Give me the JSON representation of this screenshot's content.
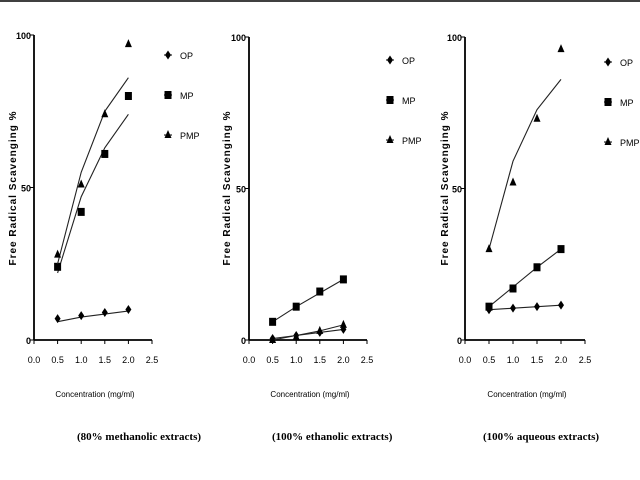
{
  "chart_data": [
    {
      "type": "scatter",
      "caption": "(80% methanolic extracts)",
      "xlabel": "Concentration (mg/ml)",
      "ylabel": "Free Radical Scavenging %",
      "xlim": [
        0.0,
        2.5
      ],
      "ylim": [
        0,
        100
      ],
      "xticks": [
        "0.0",
        "0.5",
        "1.0",
        "1.5",
        "2.0",
        "2.5"
      ],
      "yticks": [
        "0",
        "50",
        "100"
      ],
      "x": [
        0.5,
        1.0,
        1.5,
        2.0
      ],
      "legend_position": "top-right",
      "series": [
        {
          "name": "OP",
          "marker": "diamond",
          "values": [
            7,
            8,
            9,
            10
          ],
          "fit": [
            6,
            7.5,
            8.5,
            9.5
          ]
        },
        {
          "name": "MP",
          "marker": "square",
          "values": [
            24,
            42,
            61,
            80
          ],
          "fit": [
            22,
            47,
            63,
            74
          ]
        },
        {
          "name": "PMP",
          "marker": "triangle",
          "values": [
            28,
            51,
            74,
            97
          ],
          "fit": [
            25,
            55,
            75,
            86
          ]
        }
      ]
    },
    {
      "type": "scatter",
      "caption": "(100% ethanolic extracts)",
      "xlabel": "Concentration (mg/ml)",
      "ylabel": "Free Radical Scavenging %",
      "xlim": [
        0.0,
        2.5
      ],
      "ylim": [
        0,
        100
      ],
      "xticks": [
        "0.0",
        "0.5",
        "1.0",
        "1.5",
        "2.0",
        "2.5"
      ],
      "yticks": [
        "0",
        "50",
        "100"
      ],
      "x": [
        0.5,
        1.0,
        1.5,
        2.0
      ],
      "legend_position": "top-right",
      "series": [
        {
          "name": "OP",
          "marker": "diamond",
          "values": [
            0.5,
            1.5,
            2.5,
            3.5
          ],
          "fit": [
            0.5,
            1.5,
            2.5,
            3.5
          ]
        },
        {
          "name": "MP",
          "marker": "square",
          "values": [
            6,
            11,
            16,
            20
          ],
          "fit": [
            6,
            11,
            15.5,
            20
          ]
        },
        {
          "name": "PMP",
          "marker": "triangle",
          "values": [
            0,
            1,
            3,
            5
          ],
          "fit": [
            0,
            1.5,
            3,
            5
          ]
        }
      ]
    },
    {
      "type": "scatter",
      "caption": "(100% aqueous extracts)",
      "xlabel": "Concentration (mg/ml)",
      "ylabel": "Free Radical Scavenging %",
      "xlim": [
        0.0,
        2.5
      ],
      "ylim": [
        0,
        100
      ],
      "xticks": [
        "0.0",
        "0.5",
        "1.0",
        "1.5",
        "2.0",
        "2.5"
      ],
      "yticks": [
        "0",
        "50",
        "100"
      ],
      "x": [
        0.5,
        1.0,
        1.5,
        2.0
      ],
      "legend_position": "top-right",
      "series": [
        {
          "name": "OP",
          "marker": "diamond",
          "values": [
            10,
            10.5,
            11,
            11.5
          ],
          "fit": [
            10,
            10.5,
            11,
            11.5
          ]
        },
        {
          "name": "MP",
          "marker": "square",
          "values": [
            11,
            17,
            24,
            30
          ],
          "fit": [
            11,
            17.5,
            24,
            30
          ]
        },
        {
          "name": "PMP",
          "marker": "triangle",
          "values": [
            30,
            52,
            73,
            96
          ],
          "fit": [
            30,
            59,
            76,
            86
          ]
        }
      ]
    }
  ]
}
